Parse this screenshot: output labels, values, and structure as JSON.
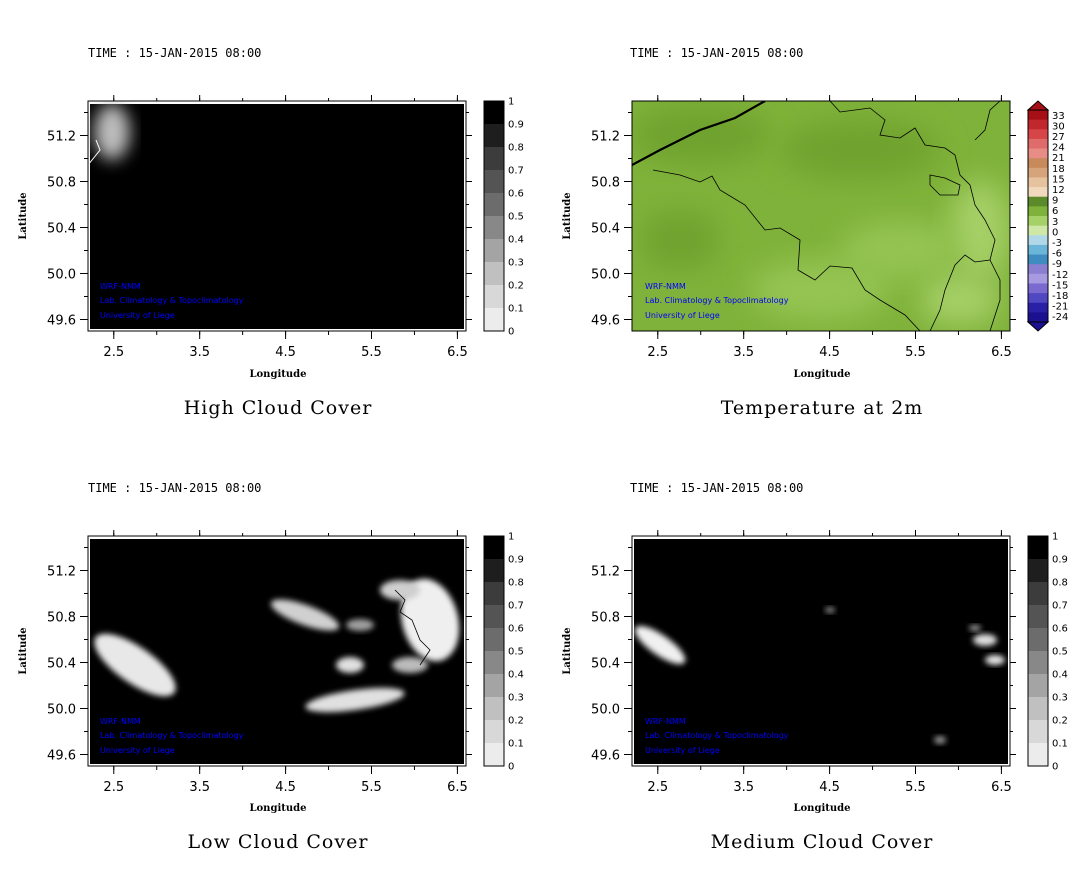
{
  "credits": [
    "WRF-NMM",
    "Lab. Climatology & Topoclimatology",
    "University of Liege"
  ],
  "colors": {
    "credit_text": "#0000ff",
    "cloud_dark": "#000000",
    "cloud_light": "#ffffff",
    "temp_land": "#7fb23a",
    "temp_land_dark": "#6fa22e",
    "temp_land_light": "#a6d068",
    "border_line": "#000000"
  },
  "chart_data": [
    {
      "type": "heatmap",
      "title": "High Cloud Cover",
      "time_label": "TIME : 15-JAN-2015 08:00",
      "xlabel": "Longitude",
      "ylabel": "Latitude",
      "xlim": [
        2.2,
        6.6
      ],
      "ylim": [
        49.5,
        51.5
      ],
      "xticks": [
        "2.5",
        "3.5",
        "4.5",
        "5.5",
        "6.5"
      ],
      "yticks": [
        "51.2",
        "50.8",
        "50.4",
        "50.0",
        "49.6"
      ],
      "colorbar": {
        "labels": [
          "1",
          "0.9",
          "0.8",
          "0.7",
          "0.6",
          "0.5",
          "0.4",
          "0.3",
          "0.2",
          "0.1",
          "0"
        ],
        "colors": [
          "#000000",
          "#1e1e1e",
          "#3c3c3c",
          "#545454",
          "#6c6c6c",
          "#888888",
          "#a4a4a4",
          "#c0c0c0",
          "#d8d8d8",
          "#ececec"
        ]
      },
      "field_summary": "near-overcast (0.9-1) over domain; low cover in north-west corner",
      "clear_patches": [
        {
          "lon": 2.4,
          "lat": 51.35,
          "level": 0.45
        }
      ]
    },
    {
      "type": "heatmap",
      "title": "Temperature at 2m",
      "time_label": "TIME : 15-JAN-2015 08:00",
      "xlabel": "Longitude",
      "ylabel": "Latitude",
      "xlim": [
        2.2,
        6.6
      ],
      "ylim": [
        49.5,
        51.5
      ],
      "xticks": [
        "2.5",
        "3.5",
        "4.5",
        "5.5",
        "6.5"
      ],
      "yticks": [
        "51.2",
        "50.8",
        "50.4",
        "50.0",
        "49.6"
      ],
      "colorbar": {
        "labels": [
          "33",
          "30",
          "27",
          "24",
          "21",
          "18",
          "15",
          "12",
          "9",
          "6",
          "3",
          "0",
          "-3",
          "-6",
          "-9",
          "-12",
          "-15",
          "-18",
          "-21",
          "-24"
        ],
        "colors": [
          "#a50f15",
          "#c0282d",
          "#d64548",
          "#e06b6b",
          "#e88c86",
          "#c88a5a",
          "#d6a47a",
          "#e6c39e",
          "#f0d9bd",
          "#5a8a2a",
          "#7fb23a",
          "#a6d068",
          "#cfe8a8",
          "#b0d8e8",
          "#6bb6d8",
          "#3f8cc0",
          "#8a7fd0",
          "#a89ae0",
          "#7a6ad0",
          "#5048c0",
          "#2a20a8",
          "#1a1090"
        ]
      },
      "field_summary": "about 3 to 6 C over most of domain, warmer (6-9) in centre and south-east"
    },
    {
      "type": "heatmap",
      "title": "Low Cloud Cover",
      "time_label": "TIME : 15-JAN-2015 08:00",
      "xlabel": "Longitude",
      "ylabel": "Latitude",
      "xlim": [
        2.2,
        6.6
      ],
      "ylim": [
        49.5,
        51.5
      ],
      "xticks": [
        "2.5",
        "3.5",
        "4.5",
        "5.5",
        "6.5"
      ],
      "yticks": [
        "51.2",
        "50.8",
        "50.4",
        "50.0",
        "49.6"
      ],
      "colorbar": {
        "labels": [
          "1",
          "0.9",
          "0.8",
          "0.7",
          "0.6",
          "0.5",
          "0.4",
          "0.3",
          "0.2",
          "0.1",
          "0"
        ],
        "colors": [
          "#000000",
          "#1e1e1e",
          "#3c3c3c",
          "#545454",
          "#6c6c6c",
          "#888888",
          "#a4a4a4",
          "#c0c0c0",
          "#d8d8d8",
          "#ececec"
        ]
      },
      "field_summary": "mostly overcast with clear gaps in west, centre and east",
      "clear_patches": [
        {
          "lon": 2.7,
          "lat": 50.3,
          "level": 0.0
        },
        {
          "lon": 4.4,
          "lat": 50.8,
          "level": 0.15
        },
        {
          "lon": 5.2,
          "lat": 50.05,
          "level": 0.1
        },
        {
          "lon": 6.2,
          "lat": 50.75,
          "level": 0.0
        },
        {
          "lon": 5.0,
          "lat": 50.35,
          "level": 0.1
        }
      ]
    },
    {
      "type": "heatmap",
      "title": "Medium Cloud Cover",
      "time_label": "TIME : 15-JAN-2015 08:00",
      "xlabel": "Longitude",
      "ylabel": "Latitude",
      "xlim": [
        2.2,
        6.6
      ],
      "ylim": [
        49.5,
        51.5
      ],
      "xticks": [
        "2.5",
        "3.5",
        "4.5",
        "5.5",
        "6.5"
      ],
      "yticks": [
        "51.2",
        "50.8",
        "50.4",
        "50.0",
        "49.6"
      ],
      "colorbar": {
        "labels": [
          "1",
          "0.9",
          "0.8",
          "0.7",
          "0.6",
          "0.5",
          "0.4",
          "0.3",
          "0.2",
          "0.1",
          "0"
        ],
        "colors": [
          "#000000",
          "#1e1e1e",
          "#3c3c3c",
          "#545454",
          "#6c6c6c",
          "#888888",
          "#a4a4a4",
          "#c0c0c0",
          "#d8d8d8",
          "#ececec"
        ]
      },
      "field_summary": "mostly overcast with small clear patches in west and east",
      "clear_patches": [
        {
          "lon": 2.5,
          "lat": 50.45,
          "level": 0.0
        },
        {
          "lon": 6.3,
          "lat": 50.6,
          "level": 0.05
        },
        {
          "lon": 6.35,
          "lat": 50.45,
          "level": 0.05
        },
        {
          "lon": 4.5,
          "lat": 50.87,
          "level": 0.4
        },
        {
          "lon": 5.7,
          "lat": 49.75,
          "level": 0.4
        }
      ]
    }
  ]
}
